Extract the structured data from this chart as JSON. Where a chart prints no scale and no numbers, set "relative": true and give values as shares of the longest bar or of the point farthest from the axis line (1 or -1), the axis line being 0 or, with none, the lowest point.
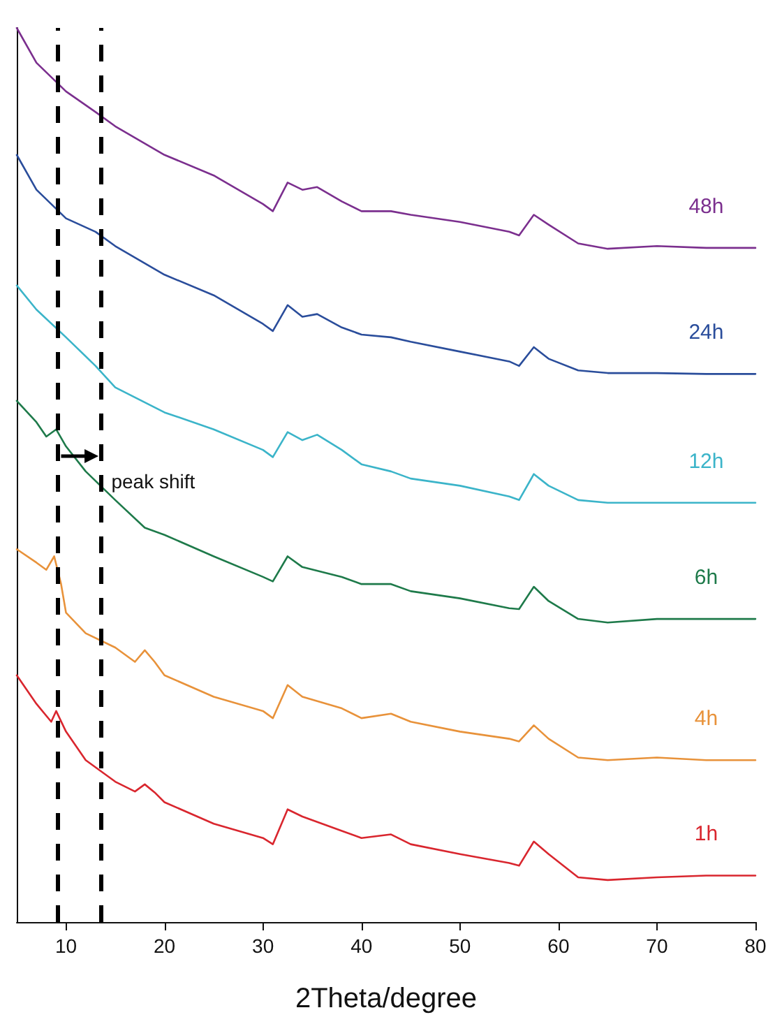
{
  "chart_data": {
    "type": "line",
    "relative": true,
    "xlabel": "2Theta/degree",
    "xlim": [
      5,
      80
    ],
    "xticks": [
      10,
      20,
      30,
      40,
      50,
      60,
      70,
      80
    ],
    "grid": false,
    "legend": false,
    "marker": "none",
    "line_style": "solid",
    "annotations": [
      "peak shift"
    ],
    "ref_lines": [
      {
        "axis": "x",
        "value": 9.2,
        "label": null,
        "color": "#000000",
        "line_style": "dashed"
      },
      {
        "axis": "x",
        "value": 13.5,
        "label": null,
        "color": "#000000",
        "line_style": "dashed"
      }
    ],
    "series": [
      {
        "name": "48h",
        "color": "#7b2f8e",
        "x": [
          5,
          7,
          10,
          13,
          15,
          20,
          25,
          30,
          31,
          32.5,
          34,
          35.5,
          38,
          40,
          43,
          45,
          50,
          55,
          56,
          57.5,
          59,
          62,
          65,
          70,
          75,
          80
        ],
        "values": [
          1.0,
          0.961,
          0.929,
          0.906,
          0.89,
          0.858,
          0.835,
          0.803,
          0.795,
          0.827,
          0.819,
          0.822,
          0.806,
          0.795,
          0.795,
          0.791,
          0.783,
          0.772,
          0.768,
          0.791,
          0.78,
          0.759,
          0.753,
          0.756,
          0.754,
          0.754
        ]
      },
      {
        "name": "24h",
        "color": "#2a4d9b",
        "x": [
          5,
          7,
          10,
          13,
          15,
          20,
          25,
          30,
          31,
          32.5,
          34,
          35.5,
          38,
          40,
          43,
          45,
          50,
          55,
          56,
          57.5,
          59,
          62,
          65,
          70,
          75,
          80
        ],
        "values": [
          0.858,
          0.819,
          0.787,
          0.772,
          0.756,
          0.724,
          0.701,
          0.669,
          0.661,
          0.69,
          0.677,
          0.68,
          0.665,
          0.657,
          0.654,
          0.649,
          0.638,
          0.627,
          0.622,
          0.643,
          0.63,
          0.617,
          0.614,
          0.614,
          0.613,
          0.613
        ]
      },
      {
        "name": "12h",
        "color": "#3bb4c9",
        "x": [
          5,
          7,
          10,
          13,
          15,
          20,
          25,
          30,
          31,
          32.5,
          34,
          35.5,
          38,
          40,
          43,
          45,
          50,
          55,
          56,
          57.5,
          59,
          62,
          65,
          70,
          75,
          80
        ],
        "values": [
          0.712,
          0.685,
          0.654,
          0.622,
          0.598,
          0.57,
          0.551,
          0.528,
          0.52,
          0.548,
          0.539,
          0.545,
          0.528,
          0.512,
          0.504,
          0.496,
          0.488,
          0.476,
          0.472,
          0.501,
          0.488,
          0.472,
          0.469,
          0.469,
          0.469,
          0.469
        ]
      },
      {
        "name": "6h",
        "color": "#1e7a4a",
        "x": [
          5,
          7,
          8,
          9,
          10,
          12,
          15,
          18,
          20,
          25,
          30,
          31,
          32.5,
          34,
          38,
          40,
          43,
          45,
          50,
          55,
          56,
          57.5,
          59,
          62,
          65,
          70,
          75,
          80
        ],
        "values": [
          0.583,
          0.559,
          0.543,
          0.551,
          0.532,
          0.504,
          0.472,
          0.441,
          0.433,
          0.409,
          0.386,
          0.381,
          0.409,
          0.397,
          0.386,
          0.378,
          0.378,
          0.37,
          0.362,
          0.351,
          0.35,
          0.375,
          0.359,
          0.339,
          0.335,
          0.339,
          0.339,
          0.339
        ]
      },
      {
        "name": "4h",
        "color": "#e8923a",
        "x": [
          5,
          7,
          8,
          8.8,
          9.5,
          10,
          12,
          15,
          17,
          18,
          19,
          20,
          25,
          30,
          31,
          32.5,
          34,
          38,
          40,
          43,
          45,
          50,
          55,
          56,
          57.5,
          59,
          62,
          65,
          70,
          75,
          80
        ],
        "values": [
          0.417,
          0.402,
          0.394,
          0.409,
          0.378,
          0.346,
          0.323,
          0.307,
          0.291,
          0.304,
          0.291,
          0.276,
          0.252,
          0.236,
          0.228,
          0.265,
          0.252,
          0.239,
          0.228,
          0.233,
          0.224,
          0.213,
          0.205,
          0.202,
          0.22,
          0.205,
          0.184,
          0.181,
          0.184,
          0.181,
          0.181
        ]
      },
      {
        "name": "1h",
        "color": "#d9262e",
        "x": [
          5,
          7,
          8.5,
          9,
          10,
          12,
          15,
          17,
          18,
          19,
          20,
          25,
          30,
          31,
          32.5,
          34,
          38,
          40,
          43,
          45,
          50,
          55,
          56,
          57.5,
          59,
          62,
          65,
          70,
          75,
          80
        ],
        "values": [
          0.276,
          0.244,
          0.224,
          0.236,
          0.213,
          0.181,
          0.157,
          0.146,
          0.154,
          0.145,
          0.134,
          0.11,
          0.094,
          0.087,
          0.126,
          0.118,
          0.102,
          0.094,
          0.098,
          0.087,
          0.076,
          0.066,
          0.063,
          0.09,
          0.076,
          0.05,
          0.047,
          0.05,
          0.052,
          0.052
        ]
      }
    ]
  }
}
